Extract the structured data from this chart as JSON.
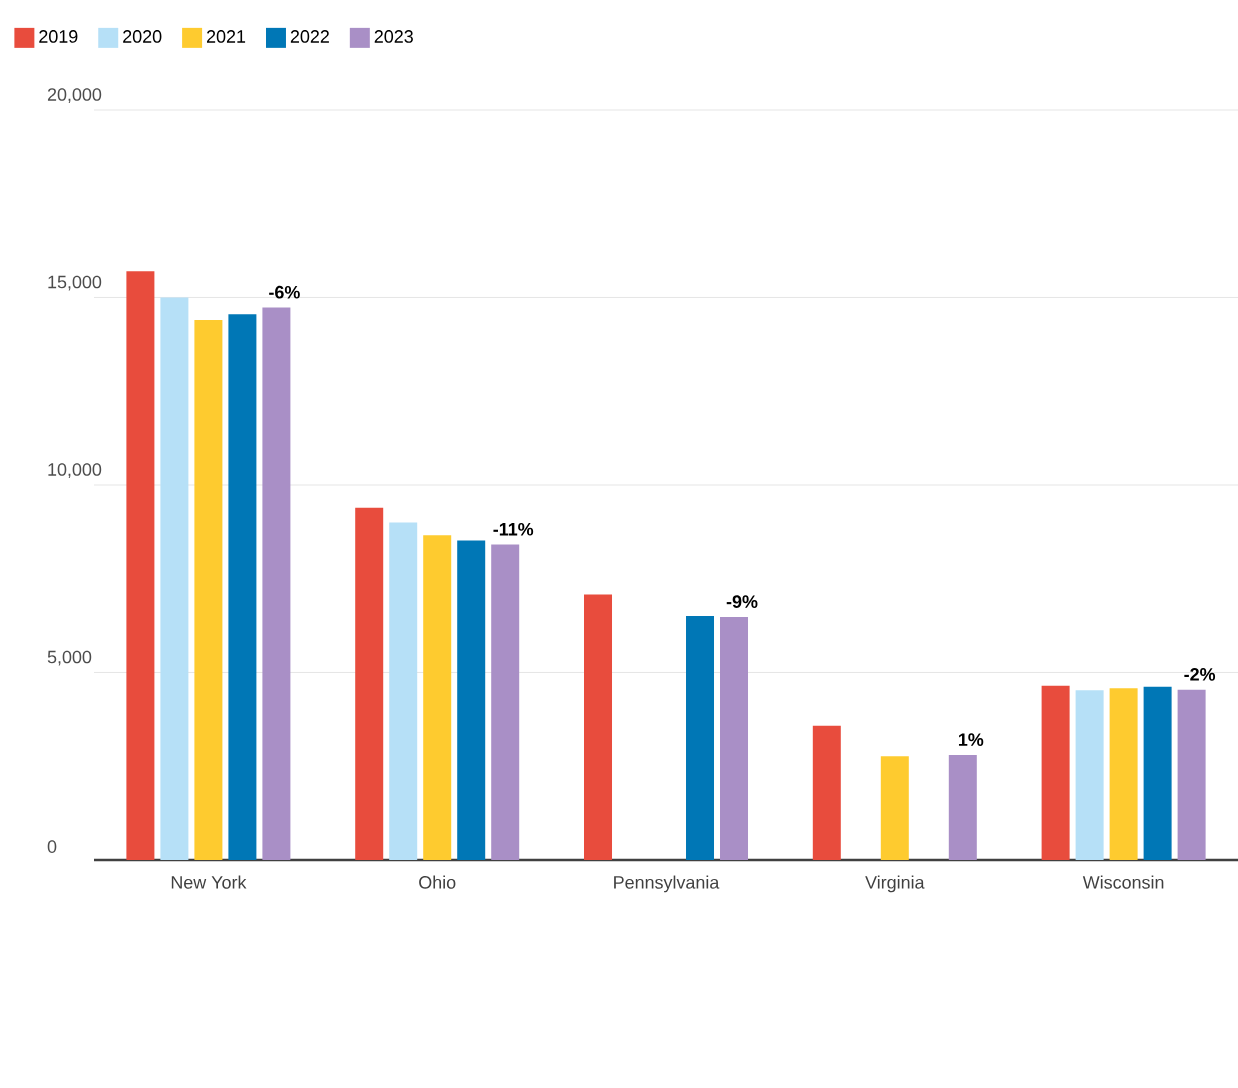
{
  "chart_data": {
    "type": "bar",
    "categories": [
      "New York",
      "Ohio",
      "Pennsylvania",
      "Virginia",
      "Wisconsin"
    ],
    "series": [
      {
        "name": "2019",
        "color": "#e84c3d",
        "values": [
          15700,
          9390,
          7080,
          3580,
          4650
        ]
      },
      {
        "name": "2020",
        "color": "#b6e0f7",
        "values": [
          15000,
          9000,
          null,
          null,
          4530
        ]
      },
      {
        "name": "2021",
        "color": "#fecb2f",
        "values": [
          14400,
          8660,
          null,
          2770,
          4580
        ]
      },
      {
        "name": "2022",
        "color": "#0077b6",
        "values": [
          14550,
          8520,
          6510,
          null,
          4620
        ]
      },
      {
        "name": "2023",
        "color": "#a98fc6",
        "values": [
          14730,
          8410,
          6480,
          2800,
          4540
        ]
      }
    ],
    "ylim": [
      0,
      20000
    ],
    "yticks": [
      0,
      {
        "value": 5000,
        "label": "5,000"
      },
      {
        "value": 10000,
        "label": "10,000"
      },
      {
        "value": 15000,
        "label": "15,000"
      },
      {
        "value": 20000,
        "label": "20,000"
      }
    ],
    "grid": "y",
    "legend": "top left",
    "annotations": [
      "-6%",
      "-11%",
      "-9%",
      "1%",
      "-2%"
    ]
  }
}
